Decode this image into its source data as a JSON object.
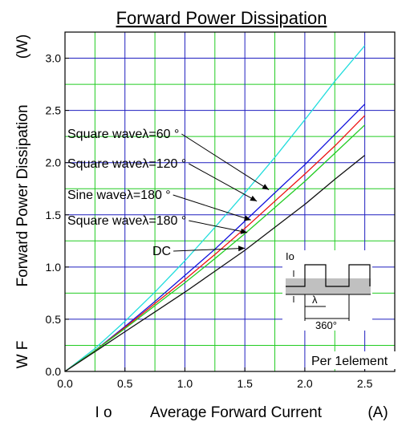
{
  "chart_data": {
    "type": "line",
    "title": "Forward Power Dissipation",
    "ylabel": {
      "symbol": "W F",
      "text": "Forward Power Dissipation",
      "unit": "(W)"
    },
    "xlabel": {
      "symbol": "I o",
      "text": "Average Forward Current",
      "unit": "(A)"
    },
    "xlim": [
      0,
      2.75
    ],
    "ylim": [
      0,
      3.25
    ],
    "xticks": [
      "0.0",
      "0.5",
      "1.0",
      "1.5",
      "2.0",
      "2.5"
    ],
    "xtick_values": [
      0,
      0.5,
      1.0,
      1.5,
      2.0,
      2.5
    ],
    "yticks": [
      "0.0",
      "0.5",
      "1.0",
      "1.5",
      "2.0",
      "2.5",
      "3.0"
    ],
    "ytick_values": [
      0,
      0.5,
      1.0,
      1.5,
      2.0,
      2.5,
      3.0
    ],
    "grid_minor_x": [
      0.25,
      0.75,
      1.25,
      1.75,
      2.25
    ],
    "grid_minor_y": [
      0.25,
      0.75,
      1.25,
      1.75,
      2.25,
      2.75
    ],
    "colors": {
      "major_grid": "#1f1fbf",
      "minor_grid": "#22cc22",
      "waveform_fill": "#c0c0c0"
    },
    "note": "Per 1element",
    "series": [
      {
        "name": "Square waveλ=60 °",
        "color": "#22dddd",
        "x": [
          0,
          0.25,
          0.5,
          0.75,
          1.0,
          1.25,
          1.5,
          1.75,
          2.0,
          2.25,
          2.5
        ],
        "y": [
          0,
          0.22,
          0.48,
          0.76,
          1.06,
          1.38,
          1.71,
          2.05,
          2.41,
          2.78,
          3.12
        ]
      },
      {
        "name": "Square waveλ=120 °",
        "color": "#1111dd",
        "x": [
          0,
          0.25,
          0.5,
          0.75,
          1.0,
          1.25,
          1.5,
          1.75,
          2.0,
          2.25,
          2.5
        ],
        "y": [
          0,
          0.2,
          0.43,
          0.67,
          0.92,
          1.17,
          1.44,
          1.71,
          1.98,
          2.27,
          2.56
        ]
      },
      {
        "name": "Sine waveλ=180 °",
        "color": "#ee1111",
        "x": [
          0,
          0.25,
          0.5,
          0.75,
          1.0,
          1.25,
          1.5,
          1.75,
          2.0,
          2.25,
          2.5
        ],
        "y": [
          0,
          0.2,
          0.42,
          0.65,
          0.88,
          1.12,
          1.37,
          1.63,
          1.89,
          2.16,
          2.45
        ]
      },
      {
        "name": "Square waveλ=180 °",
        "color": "#22cc22",
        "x": [
          0,
          0.25,
          0.5,
          0.75,
          1.0,
          1.25,
          1.5,
          1.75,
          2.0,
          2.25,
          2.5
        ],
        "y": [
          0,
          0.2,
          0.41,
          0.63,
          0.85,
          1.08,
          1.32,
          1.57,
          1.82,
          2.09,
          2.36
        ]
      },
      {
        "name": "DC",
        "color": "#111111",
        "x": [
          0,
          0.25,
          0.5,
          0.75,
          1.0,
          1.25,
          1.5,
          1.75,
          2.0,
          2.25,
          2.5
        ],
        "y": [
          0,
          0.19,
          0.38,
          0.57,
          0.76,
          0.96,
          1.16,
          1.38,
          1.6,
          1.84,
          2.07
        ]
      }
    ],
    "annotations": [
      {
        "text": "Square waveλ=60 °",
        "points_to": "Square waveλ=60 °",
        "at": [
          1.7,
          1.74
        ]
      },
      {
        "text": "Square waveλ=120 °",
        "points_to": "Square waveλ=120 °",
        "at": [
          1.6,
          1.63
        ]
      },
      {
        "text": "Sine waveλ=180 °",
        "points_to": "Sine waveλ=180 °",
        "at": [
          1.55,
          1.45
        ]
      },
      {
        "text": "Square waveλ=180 °",
        "points_to": "Square waveλ=180 °",
        "at": [
          1.52,
          1.33
        ]
      },
      {
        "text": "DC",
        "points_to": "DC",
        "at": [
          1.5,
          1.18
        ]
      }
    ],
    "waveform_inset": {
      "io_label": "Io",
      "lambda_label": "λ",
      "period_label": "360°"
    }
  }
}
